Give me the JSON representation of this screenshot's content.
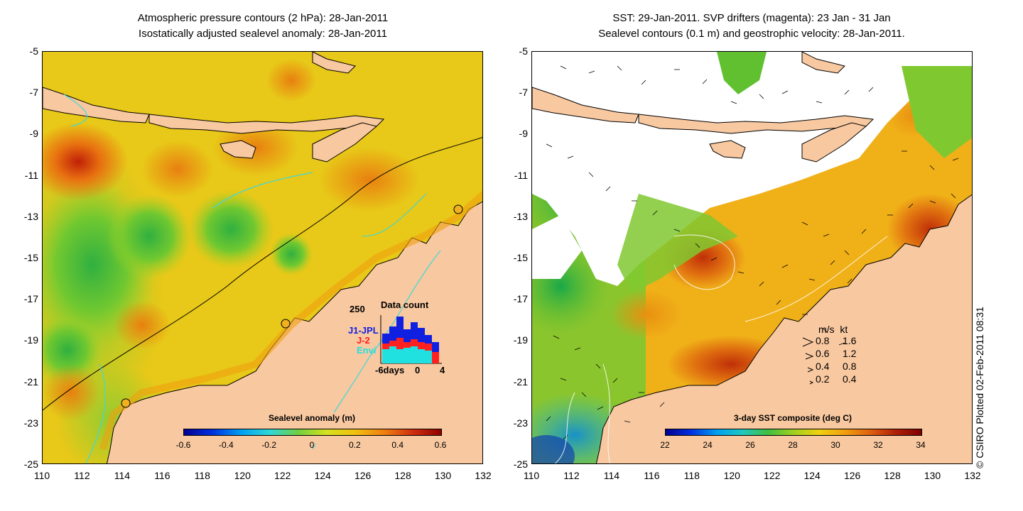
{
  "left_panel": {
    "title_line1": "Atmospheric pressure contours (2 hPa): 28-Jan-2011",
    "title_line2": "Isostatically adjusted sealevel anomaly: 28-Jan-2011",
    "colorbar": {
      "label": "Sealevel anomaly (m)",
      "ticks": [
        "-0.6",
        "-0.4",
        "-0.2",
        "0",
        "0.2",
        "0.4",
        "0.6"
      ]
    },
    "data_count": {
      "title": "Data count",
      "ymax_label": "250",
      "series": [
        {
          "name": "J1-JPL",
          "color": "#1020e0"
        },
        {
          "name": "J-2",
          "color": "#ff2020"
        },
        {
          "name": "Envi",
          "color": "#20e0e0"
        }
      ],
      "x_labels": [
        "-6days",
        "0",
        "4"
      ]
    }
  },
  "right_panel": {
    "title_line1": "SST: 29-Jan-2011. SVP drifters (magenta): 23 Jan - 31 Jan",
    "title_line2": "Sealevel contours (0.1 m) and geostrophic velocity: 28-Jan-2011.",
    "colorbar": {
      "label": "3-day SST composite (deg C)",
      "ticks": [
        "22",
        "24",
        "26",
        "28",
        "30",
        "32",
        "34"
      ]
    },
    "velocity_legend": {
      "header": "m/s  kt",
      "rows": [
        {
          "ms": "0.8",
          "kt": "1.6"
        },
        {
          "ms": "0.6",
          "kt": "1.2"
        },
        {
          "ms": "0.4",
          "kt": "0.8"
        },
        {
          "ms": "0.2",
          "kt": "0.4"
        }
      ]
    }
  },
  "axes": {
    "y_ticks": [
      "-5",
      "-7",
      "-9",
      "-11",
      "-13",
      "-15",
      "-17",
      "-19",
      "-21",
      "-23",
      "-25"
    ],
    "x_ticks": [
      "110",
      "112",
      "114",
      "116",
      "118",
      "120",
      "122",
      "124",
      "126",
      "128",
      "130",
      "132"
    ]
  },
  "credit": "© CSIRO Plotted 02-Feb-2011 08:31",
  "colors": {
    "land": "#f8c8a0",
    "ocean_base_left": "#e8d020",
    "ocean_base_right": "#f0b020",
    "contour_cyan": "#40d8d8"
  }
}
